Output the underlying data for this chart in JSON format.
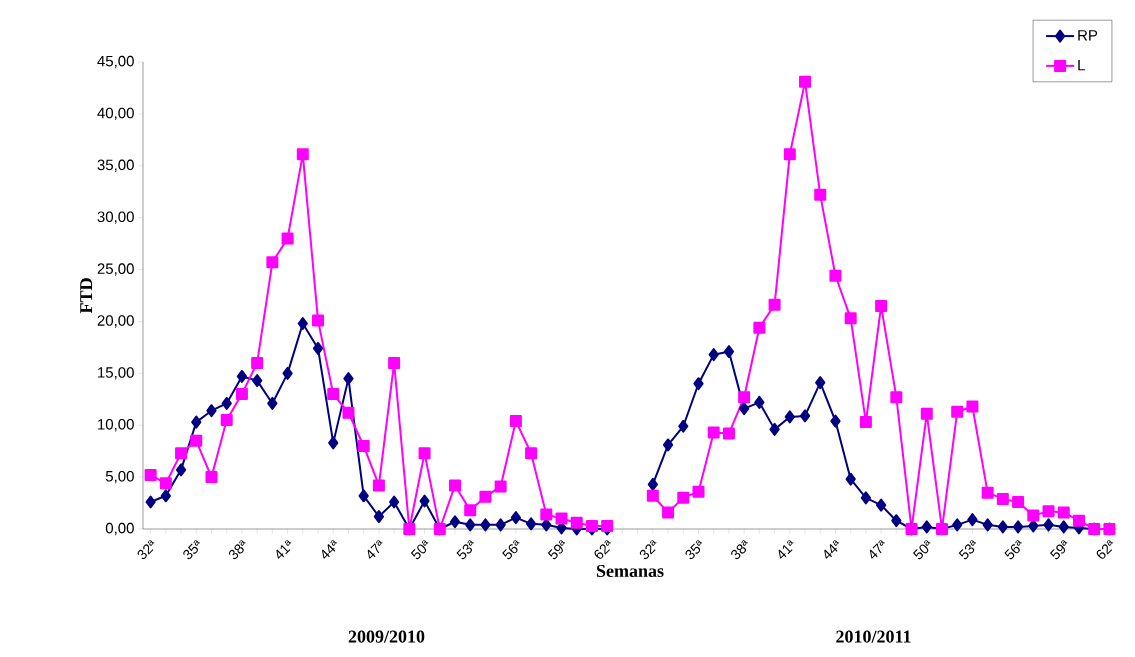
{
  "chart_data": {
    "type": "line",
    "xlabel": "Semanas",
    "ylabel": "FTD",
    "categories": [
      "32ª",
      null,
      null,
      "35ª",
      null,
      null,
      "38ª",
      null,
      null,
      "41ª",
      null,
      null,
      "44ª",
      null,
      null,
      "47ª",
      null,
      null,
      "50ª",
      null,
      null,
      "53ª",
      null,
      null,
      "56ª",
      null,
      null,
      "59ª",
      null,
      null,
      "62ª",
      null,
      null,
      "32ª",
      null,
      null,
      "35ª",
      null,
      null,
      "38ª",
      null,
      null,
      "41ª",
      null,
      null,
      "44ª",
      null,
      null,
      "47ª",
      null,
      null,
      "50ª",
      null,
      null,
      "53ª",
      null,
      null,
      "56ª",
      null,
      null,
      "59ª",
      null,
      null,
      "62ª"
    ],
    "series": [
      {
        "name": "RP",
        "color": "#000080",
        "marker": "diamond",
        "values": [
          2.6,
          3.2,
          5.7,
          10.3,
          11.4,
          12.1,
          14.7,
          14.3,
          12.1,
          15.0,
          19.8,
          17.4,
          8.3,
          14.5,
          3.2,
          1.2,
          2.6,
          0,
          2.7,
          0,
          0.7,
          0.4,
          0.4,
          0.4,
          1.1,
          0.5,
          0.4,
          0.1,
          0,
          0,
          0,
          null,
          null,
          4.3,
          8.1,
          9.9,
          14.0,
          16.8,
          17.1,
          11.6,
          12.2,
          9.6,
          10.8,
          10.9,
          14.1,
          10.4,
          4.8,
          3.0,
          2.3,
          0.8,
          0,
          0.2,
          0,
          0.4,
          0.9,
          0.4,
          0.2,
          0.2,
          0.3,
          0.4,
          0.2,
          0.1,
          0,
          0
        ]
      },
      {
        "name": "L",
        "color": "#ff00ff",
        "marker": "square",
        "values": [
          5.2,
          4.4,
          7.3,
          8.5,
          5.0,
          10.5,
          13.0,
          16.0,
          25.7,
          28.0,
          36.1,
          20.1,
          13.0,
          11.2,
          8.0,
          4.2,
          16.0,
          0,
          7.3,
          0,
          4.2,
          1.8,
          3.1,
          4.1,
          10.4,
          7.3,
          1.4,
          1.0,
          0.6,
          0.3,
          0.3,
          null,
          null,
          3.2,
          1.6,
          3.0,
          3.6,
          9.3,
          9.2,
          12.7,
          19.4,
          21.6,
          36.1,
          43.1,
          32.2,
          24.4,
          20.3,
          10.3,
          21.5,
          12.7,
          0,
          11.1,
          0,
          11.3,
          11.8,
          3.5,
          2.9,
          2.6,
          1.3,
          1.7,
          1.6,
          0.8,
          0,
          0
        ]
      }
    ],
    "ylim": [
      0,
      45
    ],
    "yticks": [
      {
        "value": 0,
        "label": "0,00"
      },
      {
        "value": 5,
        "label": "5,00"
      },
      {
        "value": 10,
        "label": "10,00"
      },
      {
        "value": 15,
        "label": "15,00"
      },
      {
        "value": 20,
        "label": "20,00"
      },
      {
        "value": 25,
        "label": "25,00"
      },
      {
        "value": 30,
        "label": "30,00"
      },
      {
        "value": 35,
        "label": "35,00"
      },
      {
        "value": 40,
        "label": "40,00"
      },
      {
        "value": 45,
        "label": "45,00"
      }
    ],
    "grid": false,
    "legend": "top right",
    "line_style": "solid",
    "annotations": [
      "2009/2010",
      "2010/2011"
    ]
  }
}
